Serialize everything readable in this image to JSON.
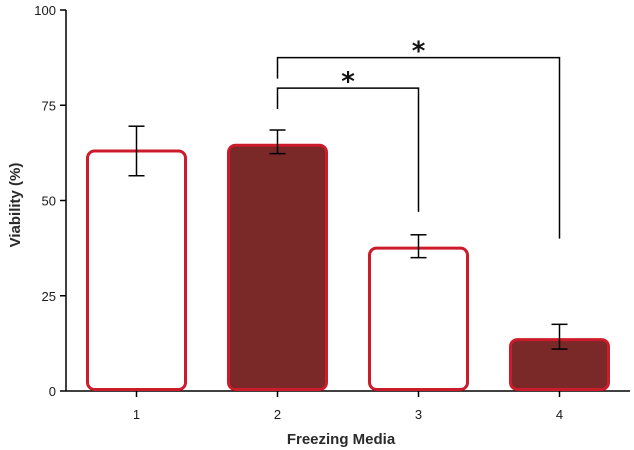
{
  "chart_data": {
    "type": "bar",
    "title": "",
    "xlabel": "Freezing Media",
    "ylabel": "Viability (%)",
    "ylim": [
      0,
      100
    ],
    "yticks": [
      0,
      25,
      50,
      75,
      100
    ],
    "categories": [
      "1",
      "2",
      "3",
      "4"
    ],
    "values": [
      63,
      64.5,
      37.5,
      13.5
    ],
    "error_low": [
      56.5,
      62.3,
      35,
      11
    ],
    "error_high": [
      69.5,
      68.5,
      41,
      17.5
    ],
    "fills": [
      "#ffffff",
      "#7a2828",
      "#ffffff",
      "#7a2828"
    ],
    "grid": false,
    "annotations": [
      {
        "text": "*",
        "from": "2",
        "to": "3",
        "y_top": 79.5,
        "from_y": 74,
        "to_y": 47
      },
      {
        "text": "*",
        "from": "2",
        "to": "4",
        "y_top": 87.5,
        "from_y": 82,
        "to_y": 40
      }
    ]
  },
  "colors": {
    "bar_outline": "#cc1b2b",
    "axis": "#000000"
  }
}
